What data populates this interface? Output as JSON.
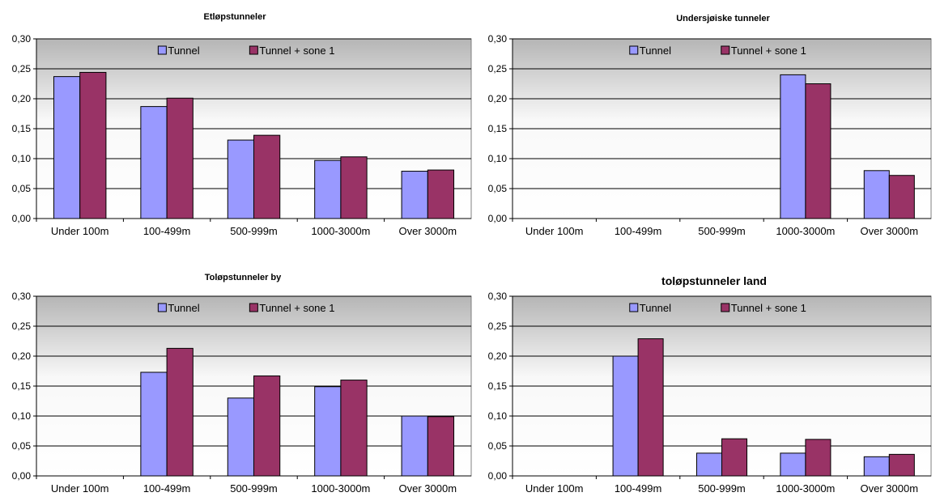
{
  "legend_labels": [
    "Tunnel",
    "Tunnel + sone 1"
  ],
  "series_colors": [
    "#9999FF",
    "#993366"
  ],
  "chart_data": [
    {
      "type": "bar",
      "title": "Etløpstunneler",
      "categories": [
        "Under 100m",
        "100-499m",
        "500-999m",
        "1000-3000m",
        "Over 3000m"
      ],
      "series": [
        {
          "name": "Tunnel",
          "values": [
            0.237,
            0.187,
            0.131,
            0.097,
            0.079
          ]
        },
        {
          "name": "Tunnel + sone 1",
          "values": [
            0.244,
            0.201,
            0.139,
            0.103,
            0.081
          ]
        }
      ],
      "ylim": [
        0,
        0.3
      ],
      "yticks": [
        "0,00",
        "0,05",
        "0,10",
        "0,15",
        "0,20",
        "0,25",
        "0,30"
      ],
      "grid": true,
      "legend_position": "top-center"
    },
    {
      "type": "bar",
      "title": "Undersjøiske tunneler",
      "categories": [
        "Under 100m",
        "100-499m",
        "500-999m",
        "1000-3000m",
        "Over 3000m"
      ],
      "series": [
        {
          "name": "Tunnel",
          "values": [
            0,
            0,
            0,
            0.24,
            0.08
          ]
        },
        {
          "name": "Tunnel + sone 1",
          "values": [
            0,
            0,
            0,
            0.225,
            0.072
          ]
        }
      ],
      "ylim": [
        0,
        0.3
      ],
      "yticks": [
        "0,00",
        "0,05",
        "0,10",
        "0,15",
        "0,20",
        "0,25",
        "0,30"
      ],
      "grid": true,
      "legend_position": "top-center"
    },
    {
      "type": "bar",
      "title": "Toløpstunneler by",
      "categories": [
        "Under 100m",
        "100-499m",
        "500-999m",
        "1000-3000m",
        "Over 3000m"
      ],
      "series": [
        {
          "name": "Tunnel",
          "values": [
            0,
            0.173,
            0.13,
            0.149,
            0.1
          ]
        },
        {
          "name": "Tunnel + sone 1",
          "values": [
            0,
            0.213,
            0.167,
            0.16,
            0.099
          ]
        }
      ],
      "ylim": [
        0,
        0.3
      ],
      "yticks": [
        "0,00",
        "0,05",
        "0,10",
        "0,15",
        "0,20",
        "0,25",
        "0,30"
      ],
      "grid": true,
      "legend_position": "top-center"
    },
    {
      "type": "bar",
      "title": "toløpstunneler land",
      "categories": [
        "Under 100m",
        "100-499m",
        "500-999m",
        "1000-3000m",
        "Over 3000m"
      ],
      "series": [
        {
          "name": "Tunnel",
          "values": [
            0,
            0.2,
            0.038,
            0.038,
            0.032
          ]
        },
        {
          "name": "Tunnel + sone 1",
          "values": [
            0,
            0.229,
            0.062,
            0.061,
            0.036
          ]
        }
      ],
      "ylim": [
        0,
        0.3
      ],
      "yticks": [
        "0,00",
        "0,05",
        "0,10",
        "0,15",
        "0,20",
        "0,25",
        "0,30"
      ],
      "grid": true,
      "legend_position": "top-center"
    }
  ]
}
